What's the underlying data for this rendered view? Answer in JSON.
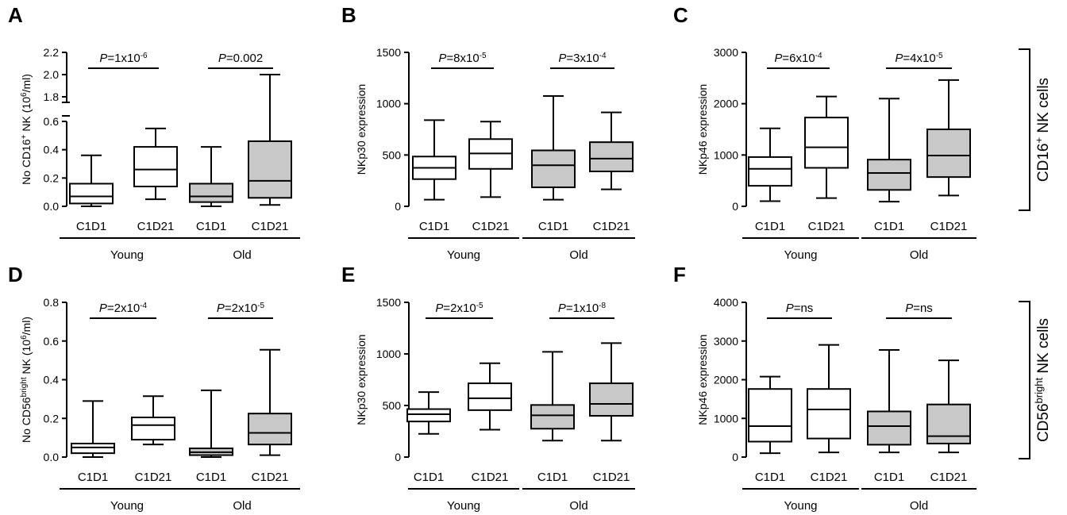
{
  "brackets": [
    {
      "id": "top",
      "label_main": "CD16",
      "label_sup": "+",
      "label_rest": " NK cells"
    },
    {
      "id": "bottom",
      "label_main": "CD56",
      "label_sup": "bright",
      "label_rest": " NK cells"
    }
  ],
  "chart_data": [
    {
      "type": "box",
      "panel": "A",
      "ylabel": {
        "main": "No CD16",
        "sup": "+",
        "mid": " NK (10",
        "sup2": "6",
        "rest": "/ml)"
      },
      "y_axis_break": true,
      "ylim_lower": [
        0,
        0.6
      ],
      "ylim_upper": [
        1.8,
        2.2
      ],
      "yticks_lower": [
        "0.0",
        "0.2",
        "0.4",
        "0.6"
      ],
      "yticks_upper": [
        "1.8",
        "2.0",
        "2.2"
      ],
      "categories": [
        "C1D1",
        "C1D21",
        "C1D1",
        "C1D21"
      ],
      "groups": [
        "Young",
        "Old"
      ],
      "pvalues": [
        {
          "p": "P",
          "eq": "=1x10",
          "exp": "-6"
        },
        {
          "p": "P",
          "eq": "=0.002",
          "exp": ""
        }
      ],
      "boxes": [
        {
          "min": 0.0,
          "q1": 0.02,
          "median": 0.07,
          "q3": 0.16,
          "max": 0.36,
          "fill": "#ffffff"
        },
        {
          "min": 0.05,
          "q1": 0.14,
          "median": 0.26,
          "q3": 0.42,
          "max": 0.55,
          "fill": "#ffffff"
        },
        {
          "min": 0.0,
          "q1": 0.03,
          "median": 0.07,
          "q3": 0.16,
          "max": 0.42,
          "fill": "#c8c8c8"
        },
        {
          "min": 0.01,
          "q1": 0.06,
          "median": 0.18,
          "q3": 0.46,
          "max": 2.0,
          "fill": "#c8c8c8"
        }
      ]
    },
    {
      "type": "box",
      "panel": "B",
      "ylabel": {
        "main": "NKp30 expression"
      },
      "ylim": [
        0,
        1500
      ],
      "yticks": [
        "0",
        "500",
        "1000",
        "1500"
      ],
      "categories": [
        "C1D1",
        "C1D21",
        "C1D1",
        "C1D21"
      ],
      "groups": [
        "Young",
        "Old"
      ],
      "pvalues": [
        {
          "p": "P",
          "eq": "=8x10",
          "exp": "-5"
        },
        {
          "p": "P",
          "eq": "=3x10",
          "exp": "-4"
        }
      ],
      "boxes": [
        {
          "min": 65,
          "q1": 265,
          "median": 375,
          "q3": 485,
          "max": 840,
          "fill": "#ffffff"
        },
        {
          "min": 90,
          "q1": 365,
          "median": 515,
          "q3": 655,
          "max": 825,
          "fill": "#ffffff"
        },
        {
          "min": 65,
          "q1": 185,
          "median": 400,
          "q3": 545,
          "max": 1075,
          "fill": "#c8c8c8"
        },
        {
          "min": 165,
          "q1": 340,
          "median": 465,
          "q3": 625,
          "max": 915,
          "fill": "#c8c8c8"
        }
      ]
    },
    {
      "type": "box",
      "panel": "C",
      "ylabel": {
        "main": "NKp46 expression"
      },
      "ylim": [
        0,
        3000
      ],
      "yticks": [
        "0",
        "1000",
        "2000",
        "3000"
      ],
      "categories": [
        "C1D1",
        "C1D21",
        "C1D1",
        "C1D21"
      ],
      "groups": [
        "Young",
        "Old"
      ],
      "pvalues": [
        {
          "p": "P",
          "eq": "=6x10",
          "exp": "-4"
        },
        {
          "p": "P",
          "eq": "=4x10",
          "exp": "-5"
        }
      ],
      "boxes": [
        {
          "min": 100,
          "q1": 400,
          "median": 730,
          "q3": 960,
          "max": 1520,
          "fill": "#ffffff"
        },
        {
          "min": 160,
          "q1": 750,
          "median": 1150,
          "q3": 1730,
          "max": 2140,
          "fill": "#ffffff"
        },
        {
          "min": 90,
          "q1": 320,
          "median": 650,
          "q3": 910,
          "max": 2100,
          "fill": "#c8c8c8"
        },
        {
          "min": 210,
          "q1": 570,
          "median": 990,
          "q3": 1500,
          "max": 2460,
          "fill": "#c8c8c8"
        }
      ]
    },
    {
      "type": "box",
      "panel": "D",
      "ylabel": {
        "main": "No CD56",
        "sup": "bright",
        "mid": " NK (10",
        "sup2": "6",
        "rest": "/ml)"
      },
      "ylim": [
        0,
        0.8
      ],
      "yticks": [
        "0.0",
        "0.2",
        "0.4",
        "0.6",
        "0.8"
      ],
      "categories": [
        "C1D1",
        "C1D21",
        "C1D1",
        "C1D21"
      ],
      "groups": [
        "Young",
        "Old"
      ],
      "pvalues": [
        {
          "p": "P",
          "eq": "=2x10",
          "exp": "-4"
        },
        {
          "p": "P",
          "eq": "=2x10",
          "exp": "-5"
        }
      ],
      "boxes": [
        {
          "min": 0.0,
          "q1": 0.02,
          "median": 0.05,
          "q3": 0.07,
          "max": 0.29,
          "fill": "#ffffff"
        },
        {
          "min": 0.065,
          "q1": 0.09,
          "median": 0.165,
          "q3": 0.205,
          "max": 0.315,
          "fill": "#ffffff"
        },
        {
          "min": 0.0,
          "q1": 0.01,
          "median": 0.025,
          "q3": 0.045,
          "max": 0.345,
          "fill": "#c8c8c8"
        },
        {
          "min": 0.01,
          "q1": 0.065,
          "median": 0.125,
          "q3": 0.225,
          "max": 0.555,
          "fill": "#c8c8c8"
        }
      ]
    },
    {
      "type": "box",
      "panel": "E",
      "ylabel": {
        "main": "NKp30 expression"
      },
      "ylim": [
        0,
        1500
      ],
      "yticks": [
        "0",
        "500",
        "1000",
        "1500"
      ],
      "categories": [
        "C1D1",
        "C1D21",
        "C1D1",
        "C1D21"
      ],
      "groups": [
        "Young",
        "Old"
      ],
      "pvalues": [
        {
          "p": "P",
          "eq": "=2x10",
          "exp": "-5"
        },
        {
          "p": "P",
          "eq": "=1x10",
          "exp": "-8"
        }
      ],
      "boxes": [
        {
          "min": 225,
          "q1": 345,
          "median": 415,
          "q3": 465,
          "max": 630,
          "fill": "#ffffff"
        },
        {
          "min": 265,
          "q1": 455,
          "median": 570,
          "q3": 715,
          "max": 910,
          "fill": "#ffffff"
        },
        {
          "min": 160,
          "q1": 275,
          "median": 405,
          "q3": 505,
          "max": 1020,
          "fill": "#c8c8c8"
        },
        {
          "min": 160,
          "q1": 400,
          "median": 515,
          "q3": 715,
          "max": 1105,
          "fill": "#c8c8c8"
        }
      ]
    },
    {
      "type": "box",
      "panel": "F",
      "ylabel": {
        "main": "NKp46 expression"
      },
      "ylim": [
        0,
        4000
      ],
      "yticks": [
        "0",
        "1000",
        "2000",
        "3000",
        "4000"
      ],
      "categories": [
        "C1D1",
        "C1D21",
        "C1D1",
        "C1D21"
      ],
      "groups": [
        "Young",
        "Old"
      ],
      "pvalues": [
        {
          "p": "P",
          "eq": "=ns",
          "exp": ""
        },
        {
          "p": "P",
          "eq": "=ns",
          "exp": ""
        }
      ],
      "boxes": [
        {
          "min": 100,
          "q1": 400,
          "median": 800,
          "q3": 1760,
          "max": 2080,
          "fill": "#ffffff"
        },
        {
          "min": 120,
          "q1": 480,
          "median": 1230,
          "q3": 1760,
          "max": 2900,
          "fill": "#ffffff"
        },
        {
          "min": 120,
          "q1": 320,
          "median": 800,
          "q3": 1180,
          "max": 2770,
          "fill": "#c8c8c8"
        },
        {
          "min": 120,
          "q1": 350,
          "median": 540,
          "q3": 1360,
          "max": 2500,
          "fill": "#c8c8c8"
        }
      ]
    }
  ]
}
